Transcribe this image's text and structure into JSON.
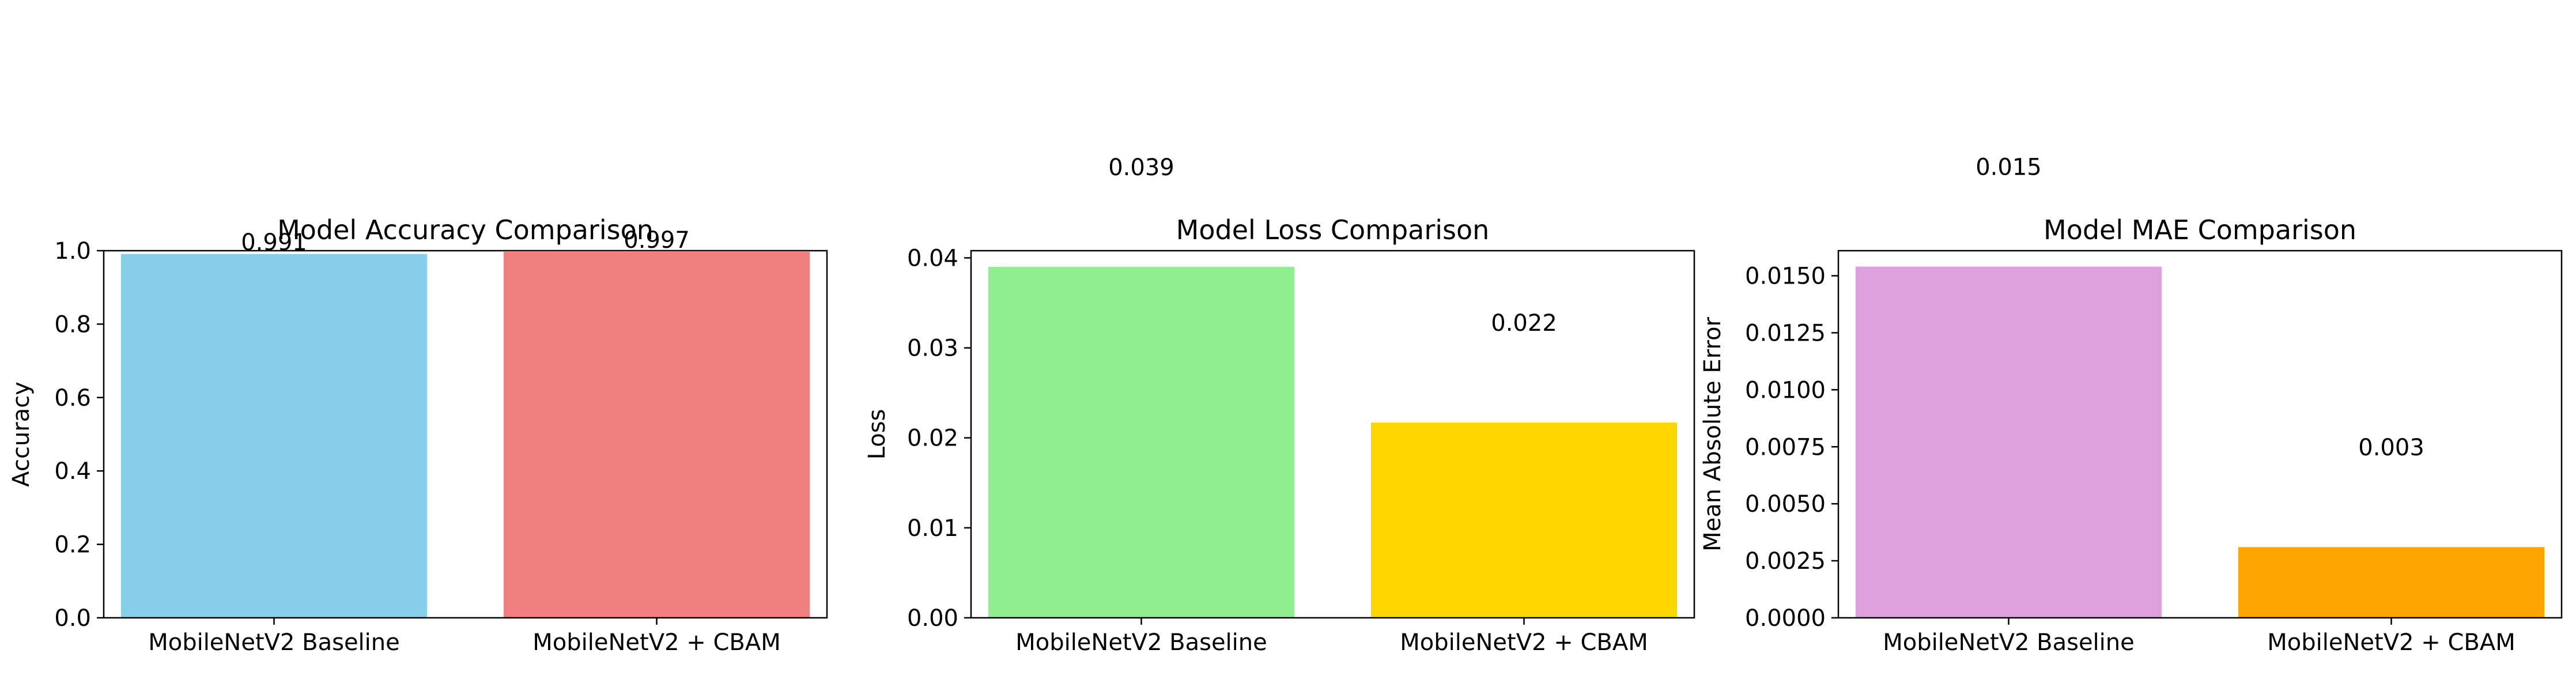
{
  "chart_data": [
    {
      "type": "bar",
      "title": "Model Accuracy Comparison",
      "xlabel": "",
      "ylabel": "Accuracy",
      "categories": [
        "MobileNetV2 Baseline",
        "MobileNetV2 + CBAM"
      ],
      "values": [
        0.991,
        0.997
      ],
      "value_labels": [
        "0.991",
        "0.997"
      ],
      "colors": [
        "#87ceeb",
        "#f08080"
      ],
      "ylim": [
        0,
        1.0
      ],
      "yticks": [
        "0.0",
        "0.2",
        "0.4",
        "0.6",
        "0.8",
        "1.0"
      ],
      "grid": false
    },
    {
      "type": "bar",
      "title": "Model Loss Comparison",
      "xlabel": "",
      "ylabel": "Loss",
      "categories": [
        "MobileNetV2 Baseline",
        "MobileNetV2 + CBAM"
      ],
      "values": [
        0.039,
        0.0217
      ],
      "value_labels": [
        "0.039",
        "0.022"
      ],
      "colors": [
        "#90ee90",
        "#ffd700"
      ],
      "ylim": [
        0,
        0.0408
      ],
      "yticks": [
        "0.00",
        "0.01",
        "0.02",
        "0.03",
        "0.04"
      ],
      "grid": false
    },
    {
      "type": "bar",
      "title": "Model MAE Comparison",
      "xlabel": "",
      "ylabel": "Mean Absolute Error",
      "categories": [
        "MobileNetV2 Baseline",
        "MobileNetV2 + CBAM"
      ],
      "values": [
        0.0154,
        0.0031
      ],
      "value_labels": [
        "0.015",
        "0.003"
      ],
      "colors": [
        "#dda0dd",
        "#ffa500"
      ],
      "ylim": [
        0,
        0.0161
      ],
      "yticks": [
        "0.0000",
        "0.0025",
        "0.0050",
        "0.0075",
        "0.0100",
        "0.0125",
        "0.0150"
      ],
      "grid": false
    }
  ]
}
